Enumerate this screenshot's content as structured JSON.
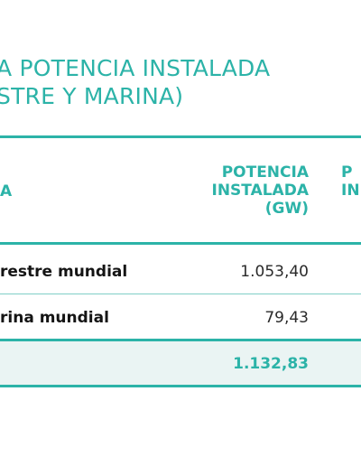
{
  "title": {
    "line1": "A POTENCIA INSTALADA",
    "line2": "STRE Y MARINA)"
  },
  "table": {
    "header_left": "A",
    "header_power": {
      "line1": "POTENCIA",
      "line2": "INSTALADA",
      "line3": "(GW)"
    },
    "header_next": {
      "line1": "P",
      "line2": "IN"
    },
    "rows": [
      {
        "label": "restre mundial",
        "value": "1.053,40"
      },
      {
        "label": "rina mundial",
        "value": "79,43"
      }
    ],
    "total_value": "1.132,83"
  },
  "colors": {
    "accent": "#2cb3a8",
    "total_band": "#eaf4f3",
    "rule_light": "#7fcfc7",
    "text": "#1a1a1a"
  }
}
